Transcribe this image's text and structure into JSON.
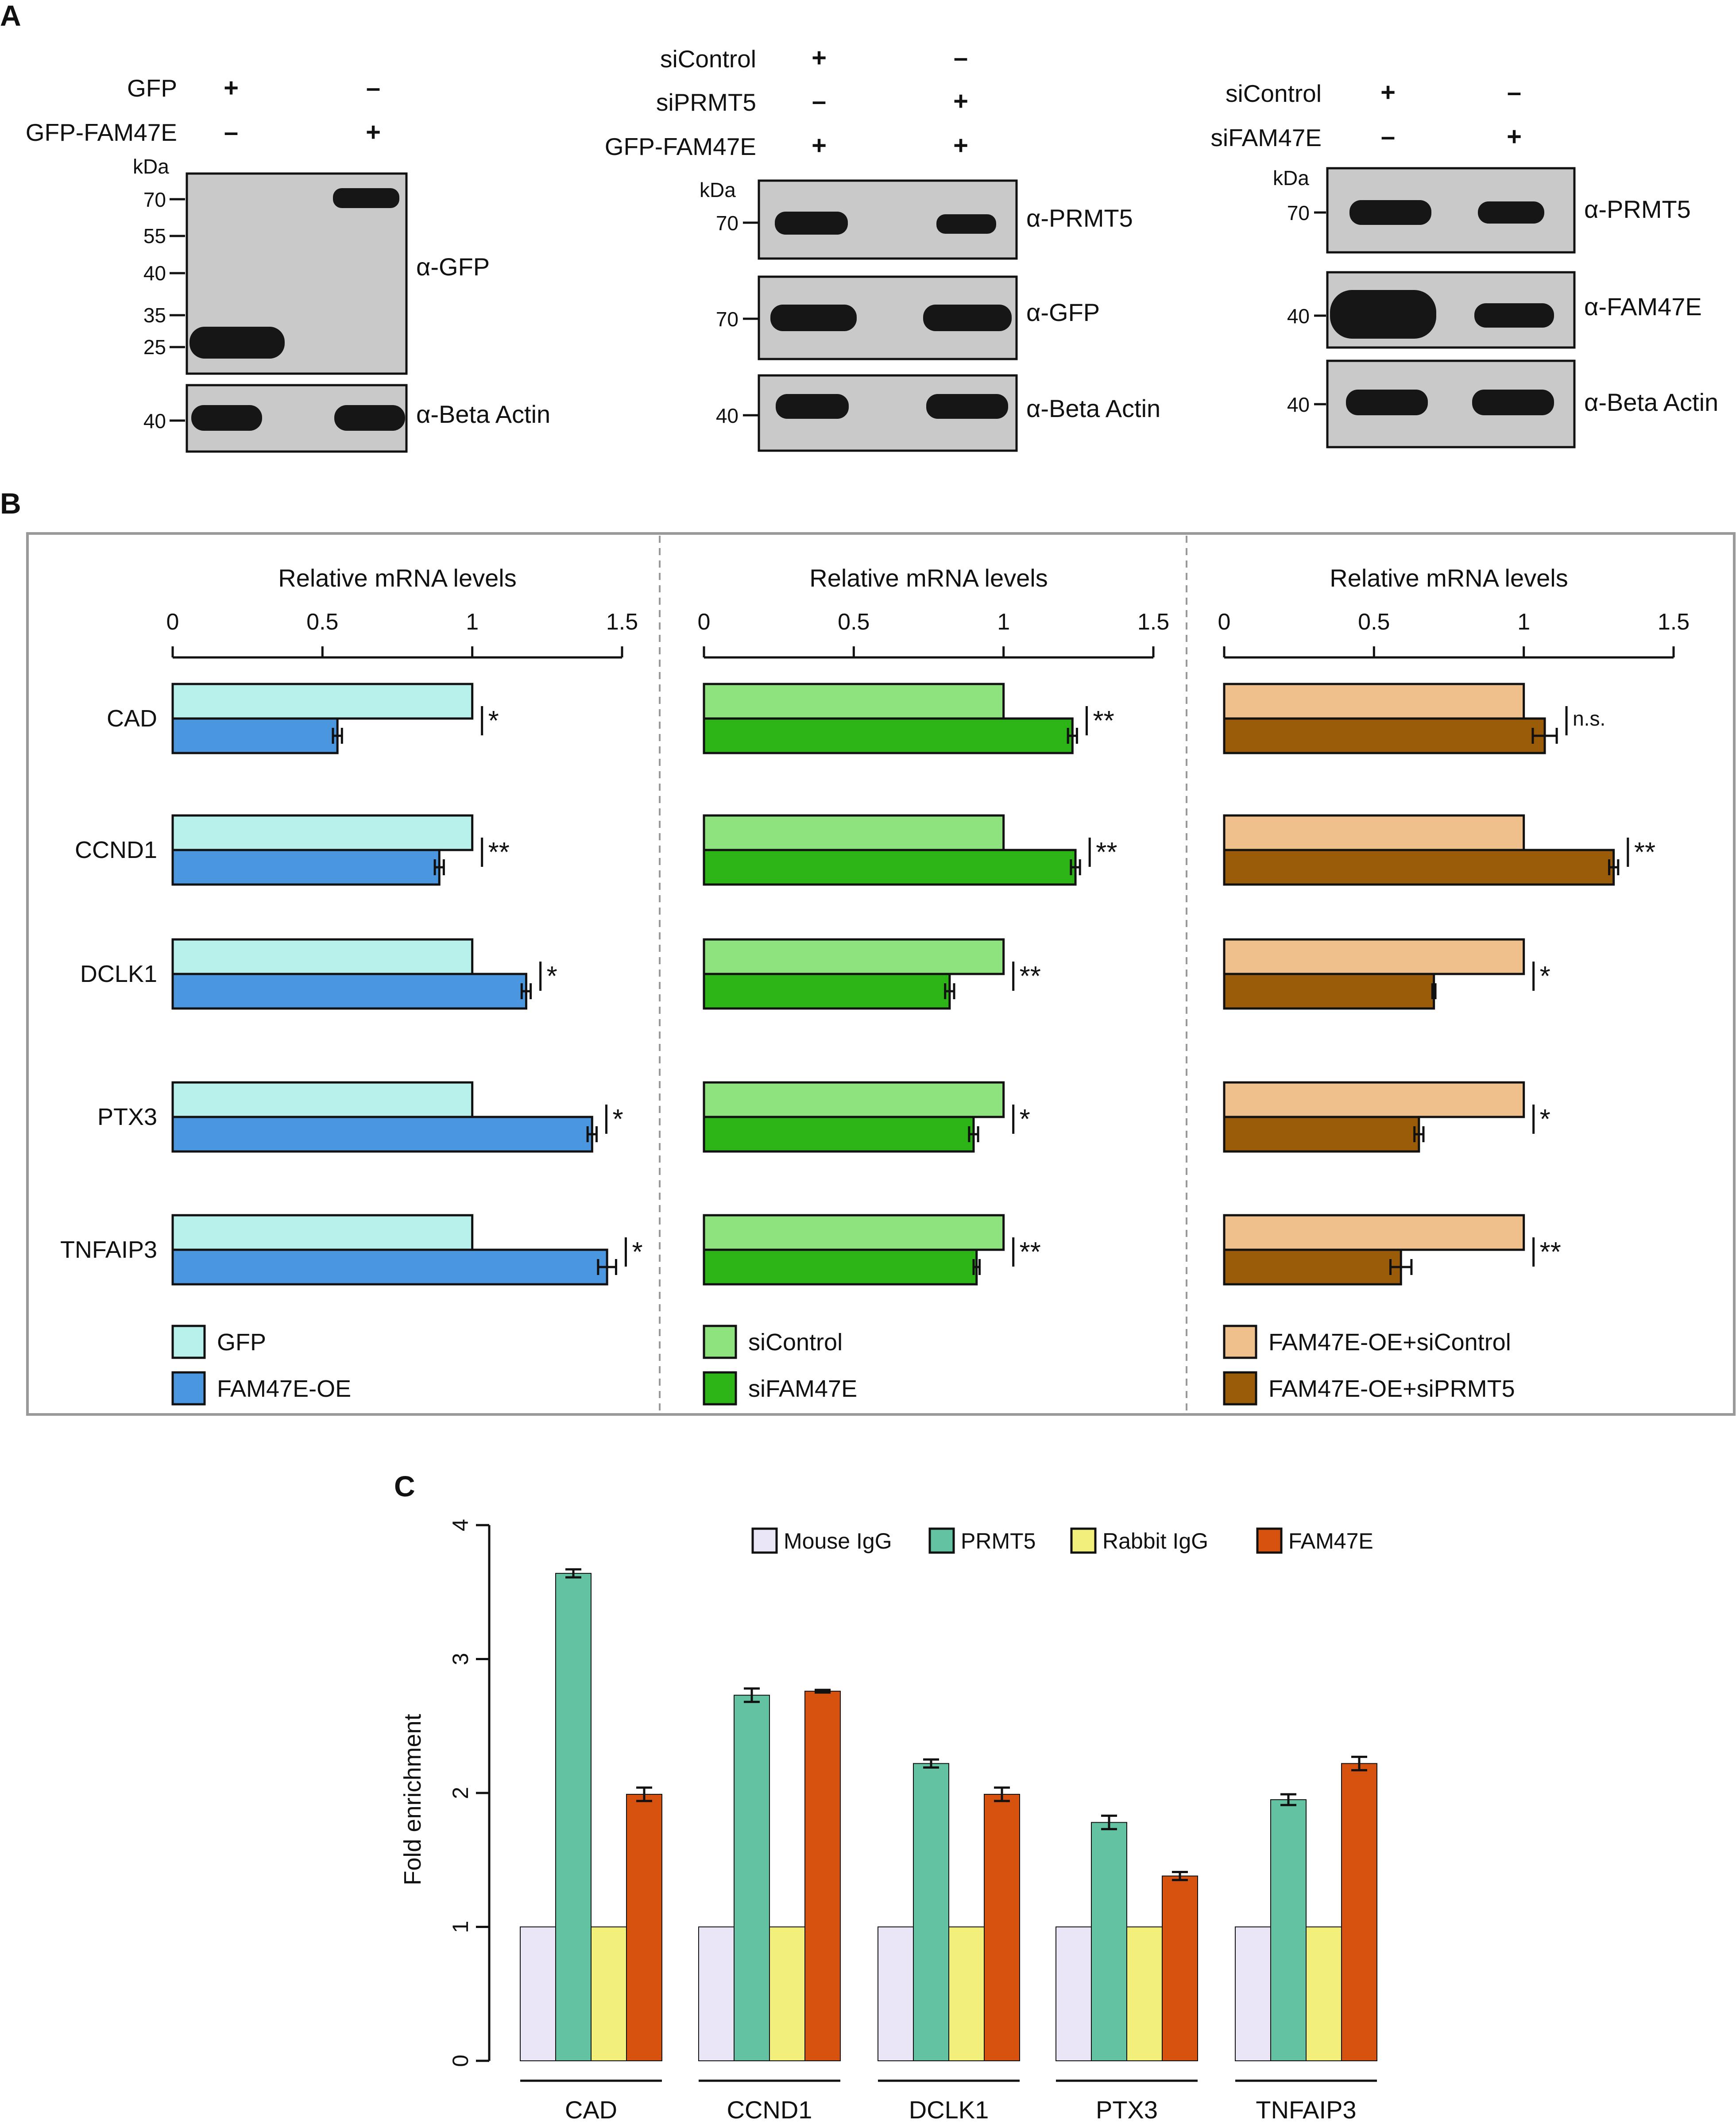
{
  "panel_labels": {
    "a": "A",
    "b": "B",
    "c": "C"
  },
  "panel_a": {
    "blot1": {
      "conditions": [
        {
          "label": "GFP",
          "marks": [
            "+",
            "–"
          ]
        },
        {
          "label": "GFP-FAM47E",
          "marks": [
            "–",
            "+"
          ]
        }
      ],
      "kda_label": "kDa",
      "main_markers": [
        "70",
        "55",
        "40",
        "35",
        "25"
      ],
      "main_antibody": "α-GFP",
      "loading_marker": "40",
      "loading_antibody": "α-Beta Actin"
    },
    "blot2": {
      "conditions": [
        {
          "label": "siControl",
          "marks": [
            "+",
            "–"
          ]
        },
        {
          "label": "siPRMT5",
          "marks": [
            "–",
            "+"
          ]
        },
        {
          "label": "GFP-FAM47E",
          "marks": [
            "+",
            "+"
          ]
        }
      ],
      "kda_label": "kDa",
      "strips": [
        {
          "marker": "70",
          "antibody": "α-PRMT5"
        },
        {
          "marker": "70",
          "antibody": "α-GFP"
        },
        {
          "marker": "40",
          "antibody": "α-Beta Actin"
        }
      ]
    },
    "blot3": {
      "conditions": [
        {
          "label": "siControl",
          "marks": [
            "+",
            "–"
          ]
        },
        {
          "label": "siFAM47E",
          "marks": [
            "–",
            "+"
          ]
        }
      ],
      "kda_label": "kDa",
      "strips": [
        {
          "marker": "70",
          "antibody": "α-PRMT5"
        },
        {
          "marker": "40",
          "antibody": "α-FAM47E"
        },
        {
          "marker": "40",
          "antibody": "α-Beta Actin"
        }
      ]
    }
  },
  "chart_data": [
    {
      "type": "bar",
      "orientation": "horizontal",
      "xlabel": "Relative mRNA levels",
      "xlim": [
        0,
        1.5
      ],
      "xticks": [
        "0",
        "0.5",
        "1",
        "1.5"
      ],
      "categories": [
        "CAD",
        "CCND1",
        "DCLK1",
        "PTX3",
        "TNFAIP3"
      ],
      "series": [
        {
          "name": "GFP",
          "color": "#b8f0ec",
          "values": [
            1.0,
            1.0,
            1.0,
            1.0,
            1.0
          ]
        },
        {
          "name": "FAM47E-OE",
          "color": "#4a97e0",
          "values": [
            0.55,
            0.89,
            1.18,
            1.4,
            1.45
          ],
          "errors": [
            0.015,
            0.015,
            0.015,
            0.015,
            0.03
          ]
        }
      ],
      "significance": [
        "*",
        "**",
        "*",
        "*",
        "*"
      ],
      "legend": "bottom-left"
    },
    {
      "type": "bar",
      "orientation": "horizontal",
      "xlabel": "Relative mRNA levels",
      "xlim": [
        0,
        1.5
      ],
      "xticks": [
        "0",
        "0.5",
        "1",
        "1.5"
      ],
      "categories": [
        "CAD",
        "CCND1",
        "DCLK1",
        "PTX3",
        "TNFAIP3"
      ],
      "series": [
        {
          "name": "siControl",
          "color": "#8ee37e",
          "values": [
            1.0,
            1.0,
            1.0,
            1.0,
            1.0
          ]
        },
        {
          "name": "siFAM47E",
          "color": "#2db517",
          "values": [
            1.23,
            1.24,
            0.82,
            0.9,
            0.91
          ],
          "errors": [
            0.015,
            0.015,
            0.015,
            0.015,
            0.01
          ]
        }
      ],
      "significance": [
        "**",
        "**",
        "**",
        "*",
        "**"
      ],
      "legend": "bottom-left"
    },
    {
      "type": "bar",
      "orientation": "horizontal",
      "xlabel": "Relative mRNA levels",
      "xlim": [
        0,
        1.5
      ],
      "xticks": [
        "0",
        "0.5",
        "1",
        "1.5"
      ],
      "categories": [
        "CAD",
        "CCND1",
        "DCLK1",
        "PTX3",
        "TNFAIP3"
      ],
      "series": [
        {
          "name": "FAM47E-OE+siControl",
          "color": "#efc08b",
          "values": [
            1.0,
            1.0,
            1.0,
            1.0,
            1.0
          ]
        },
        {
          "name": "FAM47E-OE+siPRMT5",
          "color": "#9b5c09",
          "values": [
            1.07,
            1.3,
            0.7,
            0.65,
            0.59
          ],
          "errors": [
            0.04,
            0.015,
            0.005,
            0.015,
            0.035
          ]
        }
      ],
      "significance": [
        "n.s.",
        "**",
        "*",
        "*",
        "**"
      ],
      "legend": "bottom-left"
    },
    {
      "type": "bar",
      "orientation": "vertical",
      "ylabel": "Fold enrichment",
      "ylim": [
        0,
        4
      ],
      "yticks": [
        "0",
        "1",
        "2",
        "3",
        "4"
      ],
      "categories": [
        "CAD",
        "CCND1",
        "DCLK1",
        "PTX3",
        "TNFAIP3"
      ],
      "series": [
        {
          "name": "Mouse IgG",
          "color": "#eae6f7",
          "values": [
            1,
            1,
            1,
            1,
            1
          ]
        },
        {
          "name": "PRMT5",
          "color": "#63c2a2",
          "values": [
            3.64,
            2.73,
            2.22,
            1.78,
            1.95
          ],
          "errors": [
            0.03,
            0.05,
            0.03,
            0.05,
            0.04
          ]
        },
        {
          "name": "Rabbit IgG",
          "color": "#f2f07a",
          "values": [
            1,
            1,
            1,
            1,
            1
          ]
        },
        {
          "name": "FAM47E",
          "color": "#d6520e",
          "values": [
            1.99,
            2.76,
            1.99,
            1.38,
            2.22
          ],
          "errors": [
            0.05,
            0.01,
            0.05,
            0.03,
            0.05
          ]
        }
      ],
      "legend": "top"
    }
  ]
}
